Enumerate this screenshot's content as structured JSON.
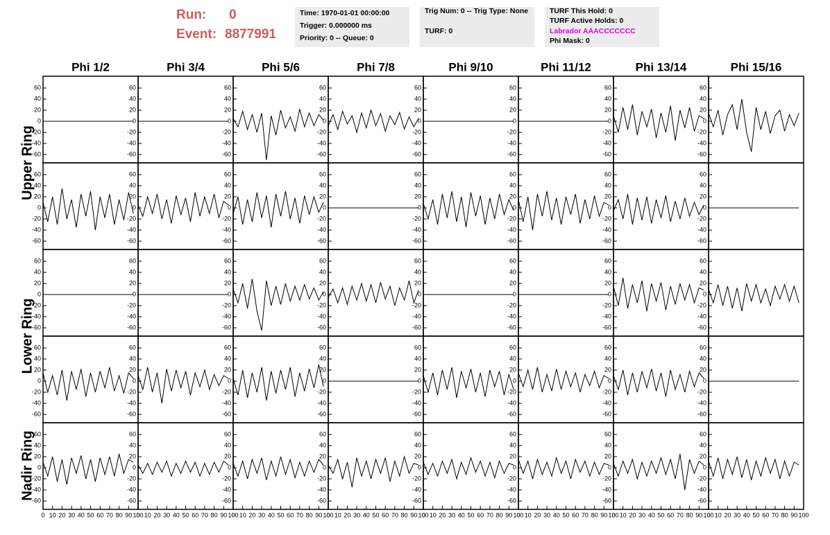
{
  "header": {
    "run_label": "Run:",
    "run": "0",
    "event_label": "Event:",
    "event": "8877991",
    "box1": [
      "Time: 1970-01-01 00:00:00",
      "Trigger: 0.000000 ms",
      "Priority: 0 -- Queue: 0"
    ],
    "box2": [
      "Trig Num: 0 -- Trig Type: None",
      "TURF: 0"
    ],
    "box3": [
      "TURF This Hold: 0",
      "TURF Active Holds: 0",
      "Labrador AAACCCCCCC",
      "Phi Mask: 0"
    ]
  },
  "chart_data": {
    "type": "line",
    "columns": [
      "Phi 1/2",
      "Phi 3/4",
      "Phi 5/6",
      "Phi 7/8",
      "Phi 9/10",
      "Phi 11/12",
      "Phi 13/14",
      "Phi 15/16"
    ],
    "row_labels": [
      "Upper Ring",
      "Lower Ring",
      "Nadir Ring"
    ],
    "xlim": [
      0,
      100
    ],
    "xticks": [
      0,
      10,
      20,
      30,
      40,
      50,
      60,
      70,
      80,
      90,
      100
    ],
    "ylim": [
      -75,
      75
    ],
    "yticks": [
      -60,
      -40,
      -20,
      0,
      20,
      40,
      60
    ],
    "color": "#000000",
    "x": [
      0,
      5,
      10,
      15,
      20,
      25,
      30,
      35,
      40,
      45,
      50,
      55,
      60,
      65,
      70,
      75,
      80,
      85,
      90,
      95
    ],
    "panels": [
      [
        [
          0,
          0,
          0,
          0,
          0,
          0,
          0,
          0,
          0,
          0,
          0,
          0,
          0,
          0,
          0,
          0,
          0,
          0,
          0,
          0
        ],
        [
          0,
          0,
          0,
          0,
          0,
          0,
          0,
          0,
          0,
          0,
          0,
          0,
          0,
          0,
          0,
          0,
          0,
          0,
          0,
          0
        ],
        [
          5,
          -10,
          18,
          -15,
          12,
          -20,
          15,
          -70,
          10,
          -25,
          20,
          -12,
          8,
          -18,
          22,
          -10,
          15,
          -8,
          12,
          2
        ],
        [
          -8,
          12,
          -15,
          18,
          -5,
          10,
          -20,
          15,
          -12,
          20,
          -8,
          14,
          -18,
          10,
          -6,
          16,
          -14,
          8,
          -10,
          5
        ],
        [
          0,
          0,
          0,
          0,
          0,
          0,
          0,
          0,
          0,
          0,
          0,
          0,
          0,
          0,
          0,
          0,
          0,
          0,
          0,
          0
        ],
        [
          0,
          0,
          0,
          0,
          0,
          0,
          0,
          0,
          0,
          0,
          0,
          0,
          0,
          0,
          0,
          0,
          0,
          0,
          0,
          0
        ],
        [
          10,
          -20,
          25,
          -15,
          30,
          -25,
          18,
          -10,
          22,
          -30,
          15,
          -20,
          28,
          -35,
          20,
          -12,
          25,
          -18,
          10,
          5
        ],
        [
          15,
          -10,
          20,
          -25,
          12,
          30,
          -15,
          40,
          -20,
          -55,
          25,
          -15,
          18,
          -22,
          10,
          20,
          -18,
          12,
          -8,
          15
        ]
      ],
      [
        [
          10,
          -25,
          20,
          -30,
          35,
          -20,
          15,
          -35,
          25,
          -15,
          30,
          -40,
          20,
          -18,
          25,
          -30,
          15,
          -22,
          28,
          -10
        ],
        [
          5,
          -15,
          20,
          -10,
          25,
          -20,
          15,
          -28,
          22,
          -12,
          18,
          -25,
          28,
          -15,
          20,
          -10,
          25,
          -18,
          12,
          5
        ],
        [
          -10,
          20,
          -30,
          15,
          -25,
          28,
          -18,
          22,
          -35,
          25,
          -15,
          30,
          -20,
          18,
          -28,
          22,
          -12,
          20,
          -8,
          10
        ],
        [
          0,
          0,
          0,
          0,
          0,
          0,
          0,
          0,
          0,
          0,
          0,
          0,
          0,
          0,
          0,
          0,
          0,
          0,
          0,
          0
        ],
        [
          8,
          -20,
          15,
          -30,
          25,
          -18,
          30,
          -25,
          20,
          -35,
          28,
          -15,
          22,
          -30,
          18,
          -20,
          25,
          -12,
          15,
          -5
        ],
        [
          15,
          -25,
          20,
          -40,
          25,
          -15,
          30,
          -22,
          18,
          -30,
          20,
          -12,
          25,
          -28,
          15,
          -20,
          22,
          -15,
          10,
          5
        ],
        [
          -5,
          15,
          -20,
          25,
          -30,
          18,
          -22,
          20,
          -28,
          15,
          -18,
          22,
          -25,
          12,
          -20,
          18,
          -15,
          10,
          -12,
          5
        ],
        [
          0,
          0,
          0,
          0,
          0,
          0,
          0,
          0,
          0,
          0,
          0,
          0,
          0,
          0,
          0,
          0,
          0,
          0,
          0,
          0
        ]
      ],
      [
        [
          0,
          0,
          0,
          0,
          0,
          0,
          0,
          0,
          0,
          0,
          0,
          0,
          0,
          0,
          0,
          0,
          0,
          0,
          0,
          0
        ],
        [
          0,
          0,
          0,
          0,
          0,
          0,
          0,
          0,
          0,
          0,
          0,
          0,
          0,
          0,
          0,
          0,
          0,
          0,
          0,
          0
        ],
        [
          10,
          -15,
          20,
          -25,
          28,
          -30,
          -65,
          25,
          -20,
          15,
          -18,
          20,
          -12,
          15,
          -10,
          18,
          -8,
          12,
          -10,
          5
        ],
        [
          -5,
          10,
          -15,
          12,
          -18,
          15,
          -10,
          20,
          -12,
          18,
          -15,
          22,
          -8,
          15,
          -20,
          12,
          -10,
          25,
          -15,
          8
        ],
        [
          0,
          0,
          0,
          0,
          0,
          0,
          0,
          0,
          0,
          0,
          0,
          0,
          0,
          0,
          0,
          0,
          0,
          0,
          0,
          0
        ],
        [
          0,
          0,
          0,
          0,
          0,
          0,
          0,
          0,
          0,
          0,
          0,
          0,
          0,
          0,
          0,
          0,
          0,
          0,
          0,
          0
        ],
        [
          15,
          -20,
          30,
          -25,
          18,
          -15,
          25,
          -30,
          20,
          -12,
          22,
          -28,
          15,
          -18,
          20,
          -10,
          18,
          -15,
          12,
          8
        ],
        [
          10,
          -15,
          18,
          -20,
          15,
          -25,
          12,
          -30,
          20,
          -12,
          18,
          -15,
          10,
          -20,
          15,
          -8,
          18,
          -12,
          15,
          -15
        ]
      ],
      [
        [
          15,
          -20,
          10,
          -25,
          20,
          -35,
          18,
          -15,
          22,
          -28,
          15,
          -20,
          18,
          -12,
          25,
          -18,
          10,
          -22,
          15,
          5
        ],
        [
          10,
          -15,
          25,
          -20,
          15,
          -40,
          22,
          -18,
          20,
          -12,
          18,
          -25,
          15,
          -10,
          20,
          -15,
          12,
          -8,
          10,
          5
        ],
        [
          5,
          -25,
          20,
          -30,
          15,
          -20,
          25,
          -35,
          18,
          -22,
          20,
          -15,
          25,
          -28,
          15,
          -18,
          22,
          -12,
          30,
          -10
        ],
        [
          0,
          0,
          0,
          0,
          0,
          0,
          0,
          0,
          0,
          0,
          0,
          0,
          0,
          0,
          0,
          0,
          0,
          0,
          0,
          0
        ],
        [
          10,
          -20,
          15,
          -25,
          20,
          -15,
          25,
          -30,
          18,
          -12,
          22,
          -20,
          15,
          -28,
          20,
          -10,
          18,
          -25,
          12,
          -15
        ],
        [
          15,
          -10,
          20,
          -15,
          25,
          -20,
          12,
          -18,
          22,
          -15,
          18,
          -10,
          15,
          -20,
          12,
          -8,
          18,
          -12,
          10,
          5
        ],
        [
          10,
          -15,
          20,
          -25,
          15,
          -20,
          18,
          -12,
          22,
          -18,
          15,
          -28,
          20,
          -15,
          12,
          -20,
          18,
          -10,
          15,
          5
        ],
        [
          0,
          0,
          0,
          0,
          0,
          0,
          0,
          0,
          0,
          0,
          0,
          0,
          0,
          0,
          0,
          0,
          0,
          0,
          0,
          0
        ]
      ],
      [
        [
          10,
          -15,
          20,
          -25,
          15,
          -30,
          18,
          -10,
          22,
          -20,
          15,
          -25,
          18,
          -12,
          20,
          -15,
          25,
          -10,
          15,
          10
        ],
        [
          5,
          -10,
          8,
          -12,
          10,
          -8,
          12,
          -15,
          8,
          -10,
          12,
          -8,
          10,
          -15,
          8,
          -12,
          10,
          -8,
          12,
          5
        ],
        [
          8,
          -15,
          12,
          -20,
          15,
          -10,
          18,
          -22,
          12,
          -15,
          20,
          -12,
          15,
          -18,
          10,
          -15,
          12,
          -8,
          15,
          5
        ],
        [
          5,
          -10,
          15,
          -20,
          10,
          -35,
          18,
          -15,
          12,
          -20,
          15,
          -10,
          18,
          -25,
          12,
          -15,
          20,
          -10,
          8,
          5
        ],
        [
          10,
          -12,
          8,
          -15,
          12,
          -10,
          15,
          -20,
          10,
          -12,
          18,
          -8,
          12,
          -15,
          10,
          -18,
          12,
          -10,
          8,
          5
        ],
        [
          15,
          -10,
          12,
          -20,
          15,
          -12,
          10,
          -15,
          18,
          -10,
          12,
          -20,
          15,
          -8,
          12,
          -15,
          10,
          -12,
          8,
          5
        ],
        [
          8,
          -15,
          12,
          -10,
          15,
          -20,
          10,
          -15,
          12,
          -10,
          18,
          -12,
          15,
          -20,
          25,
          -40,
          15,
          -10,
          12,
          5
        ],
        [
          12,
          -15,
          18,
          -20,
          15,
          -12,
          20,
          -18,
          15,
          -22,
          12,
          -15,
          18,
          -10,
          15,
          -20,
          12,
          -15,
          10,
          5
        ]
      ]
    ]
  }
}
